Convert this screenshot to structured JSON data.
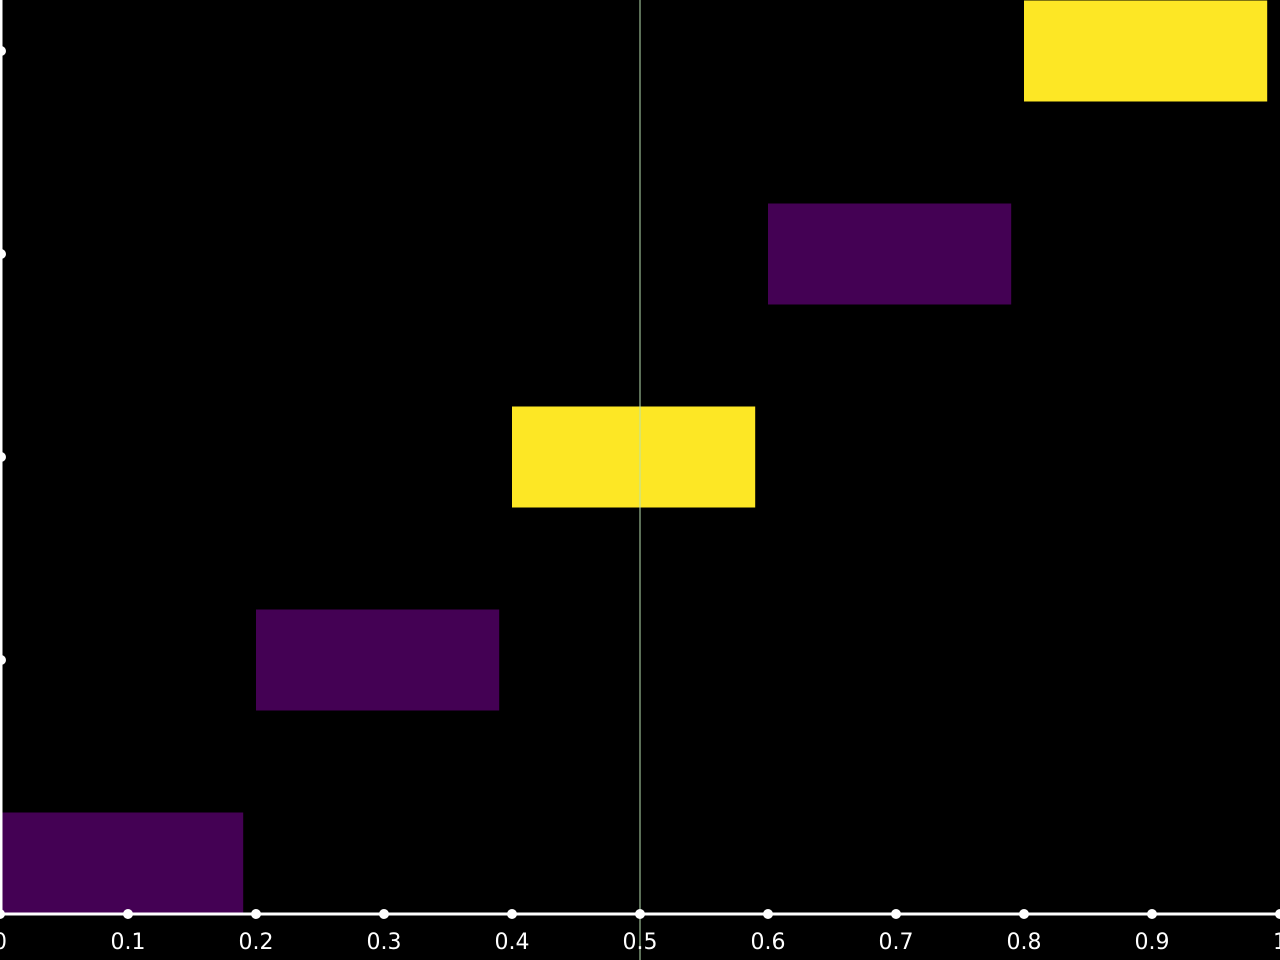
{
  "chart_data": {
    "type": "bar",
    "orientation": "horizontal",
    "title": "",
    "xlabel": "",
    "ylabel": "",
    "xlim": [
      0,
      1
    ],
    "x_ticks": [
      "0",
      "0.1",
      "0.2",
      "0.3",
      "0.4",
      "0.5",
      "0.6",
      "0.7",
      "0.8",
      "0.9",
      "1"
    ],
    "x_tick_values": [
      0,
      0.1,
      0.2,
      0.3,
      0.4,
      0.5,
      0.6,
      0.7,
      0.8,
      0.9,
      1.0
    ],
    "y_categories": 5,
    "bars": [
      {
        "row": 0,
        "start": 0.0,
        "end": 0.19,
        "color": "#440154"
      },
      {
        "row": 1,
        "start": 0.2,
        "end": 0.39,
        "color": "#440154"
      },
      {
        "row": 2,
        "start": 0.4,
        "end": 0.59,
        "color": "#fde725"
      },
      {
        "row": 3,
        "start": 0.6,
        "end": 0.79,
        "color": "#440154"
      },
      {
        "row": 4,
        "start": 0.8,
        "end": 0.99,
        "color": "#fde725"
      }
    ],
    "reference_line": {
      "x": 0.5,
      "color": "#b8e0b0"
    },
    "background_color": "#000000",
    "axis_color": "#ffffff",
    "grid": false,
    "legend": "none"
  }
}
